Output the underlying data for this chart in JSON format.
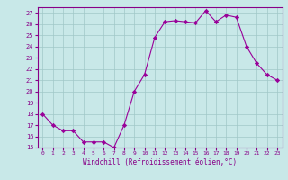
{
  "x": [
    0,
    1,
    2,
    3,
    4,
    5,
    6,
    7,
    8,
    9,
    10,
    11,
    12,
    13,
    14,
    15,
    16,
    17,
    18,
    19,
    20,
    21,
    22,
    23
  ],
  "y": [
    18,
    17,
    16.5,
    16.5,
    15.5,
    15.5,
    15.5,
    15,
    17,
    20,
    21.5,
    24.8,
    26.2,
    26.3,
    26.2,
    26.1,
    27.2,
    26.2,
    26.8,
    26.6,
    24,
    22.5,
    21.5,
    21
  ],
  "line_color": "#990099",
  "marker": "D",
  "marker_size": 2.2,
  "bg_color": "#c8e8e8",
  "grid_color": "#a0c8c8",
  "xlabel": "Windchill (Refroidissement éolien,°C)",
  "ylim": [
    15,
    27.5
  ],
  "xlim": [
    -0.5,
    23.5
  ],
  "yticks": [
    15,
    16,
    17,
    18,
    19,
    20,
    21,
    22,
    23,
    24,
    25,
    26,
    27
  ],
  "xticks": [
    0,
    1,
    2,
    3,
    4,
    5,
    6,
    7,
    8,
    9,
    10,
    11,
    12,
    13,
    14,
    15,
    16,
    17,
    18,
    19,
    20,
    21,
    22,
    23
  ],
  "tick_color": "#880088",
  "label_color": "#880088",
  "axis_line_color": "#880088",
  "spine_color": "#880088"
}
